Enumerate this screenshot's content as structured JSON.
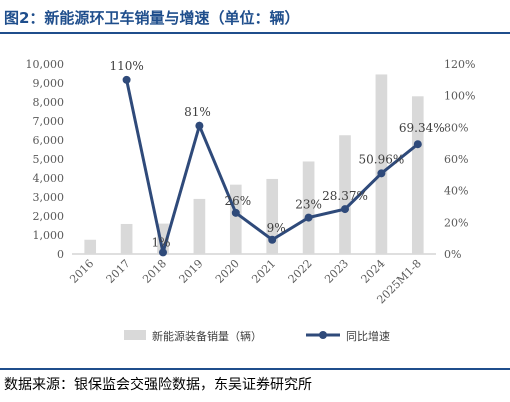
{
  "title": "图2：新能源环卫车销量与增速（单位：辆）",
  "source": "数据来源：银保监会交强险数据，东吴证券研究所",
  "colors": {
    "bar": "#d9d9d9",
    "line": "#2f4a7a",
    "title": "#1f4e8c"
  },
  "chart_data": {
    "type": "bar+line",
    "categories": [
      "2016",
      "2017",
      "2018",
      "2019",
      "2020",
      "2021",
      "2022",
      "2023",
      "2024",
      "2025M1-8"
    ],
    "series": [
      {
        "name": "新能源装备销量（辆）",
        "type": "bar",
        "axis": "left",
        "values": [
          750,
          1580,
          1600,
          2900,
          3650,
          3950,
          4870,
          6250,
          9450,
          8300
        ]
      },
      {
        "name": "同比增速",
        "type": "line",
        "axis": "right",
        "values": [
          null,
          110,
          1,
          81,
          26,
          9,
          23,
          28.37,
          50.96,
          69.34
        ],
        "labels": [
          "",
          "110%",
          "1%",
          "81%",
          "26%",
          "9%",
          "23%",
          "28.37%",
          "50.96%",
          "69.34%"
        ]
      }
    ],
    "y_left": {
      "min": 0,
      "max": 10000,
      "step": 1000,
      "tick_labels": [
        "0",
        "1,000",
        "2,000",
        "3,000",
        "4,000",
        "5,000",
        "6,000",
        "7,000",
        "8,000",
        "9,000",
        "10,000"
      ]
    },
    "y_right": {
      "min": 0,
      "max": 120,
      "step": 20,
      "tick_labels": [
        "0%",
        "20%",
        "40%",
        "60%",
        "80%",
        "100%",
        "120%"
      ]
    },
    "legend_position": "bottom",
    "grid": false
  }
}
